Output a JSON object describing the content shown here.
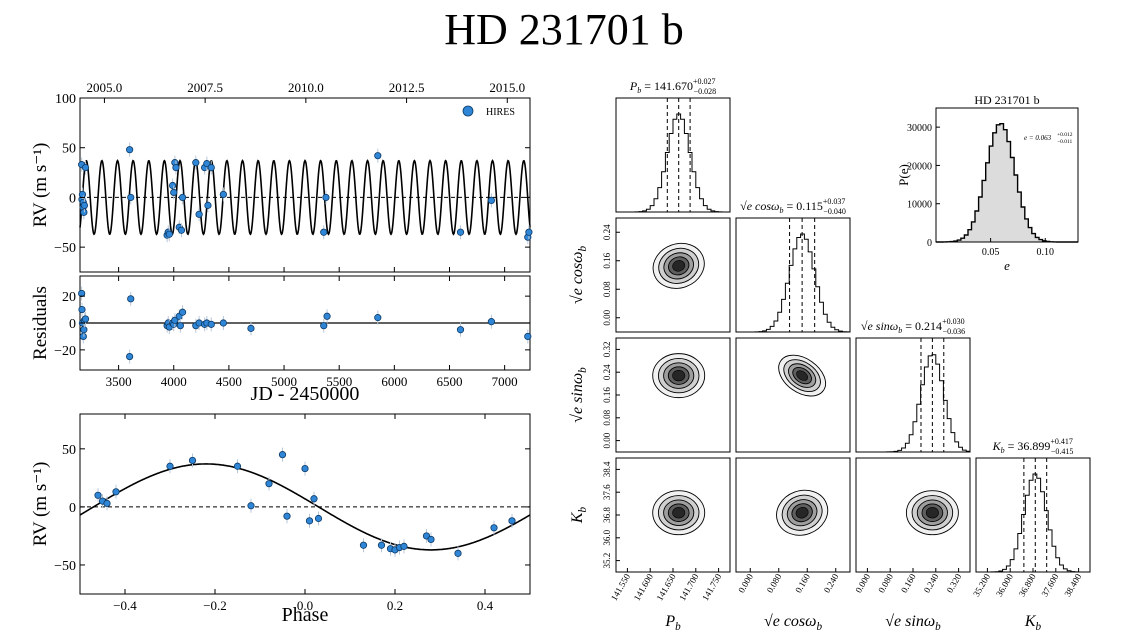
{
  "figure_title": "HD 231701 b",
  "chart_data": [
    {
      "id": "rv_time",
      "type": "scatter",
      "title": "",
      "xlabel": "",
      "ylabel": "RV (m s⁻¹)",
      "xlim": [
        3150,
        7230
      ],
      "ylim": [
        -75,
        100
      ],
      "yticks": [
        -50,
        0,
        50,
        100
      ],
      "top_axis_ticks": [
        "2005.0",
        "2007.5",
        "2010.0",
        "2012.5",
        "2015.0"
      ],
      "top_axis_values": [
        3371.5,
        4284.6,
        5197.7,
        6110.9,
        7024.0
      ],
      "legend": [
        "HIRES"
      ],
      "legend_position": "top-right",
      "model": {
        "period": 141.67,
        "amplitude": 37,
        "t0": 3207
      },
      "series": [
        {
          "name": "HIRES",
          "x": [
            3165,
            3168,
            3172,
            3178,
            3180,
            3185,
            3190,
            3200,
            3600,
            3610,
            3940,
            3950,
            3960,
            3990,
            4000,
            4010,
            4020,
            4050,
            4070,
            4080,
            4200,
            4230,
            4280,
            4300,
            4310,
            4340,
            4450,
            5360,
            5380,
            5850,
            6600,
            6880,
            7210,
            7220
          ],
          "y": [
            33,
            -2,
            3,
            -10,
            -5,
            -15,
            -8,
            30,
            48,
            0,
            -38,
            -35,
            -37,
            12,
            5,
            35,
            30,
            -30,
            -33,
            0,
            35,
            -17,
            30,
            34,
            -8,
            30,
            3,
            -35,
            0,
            42,
            -35,
            -3,
            -40,
            -35
          ]
        }
      ]
    },
    {
      "id": "residuals",
      "type": "scatter",
      "xlabel": "JD - 2450000",
      "ylabel": "Residuals",
      "xlim": [
        3150,
        7230
      ],
      "ylim": [
        -35,
        35
      ],
      "xticks": [
        3500,
        4000,
        4500,
        5000,
        5500,
        6000,
        6500,
        7000
      ],
      "yticks": [
        -20,
        0,
        20
      ],
      "series": [
        {
          "name": "HIRES",
          "x": [
            3165,
            3168,
            3172,
            3180,
            3185,
            3190,
            3200,
            3600,
            3610,
            3940,
            3950,
            3960,
            3990,
            4000,
            4010,
            4050,
            4060,
            4080,
            4200,
            4230,
            4280,
            4300,
            4340,
            4450,
            4700,
            5360,
            5390,
            5850,
            6600,
            6880,
            7210
          ],
          "y": [
            22,
            10,
            0,
            -10,
            -5,
            2,
            3,
            -25,
            18,
            -2,
            0,
            -3,
            0,
            -1,
            2,
            5,
            -2,
            8,
            -2,
            0,
            -1,
            0,
            -1,
            0,
            -4,
            -2,
            5,
            4,
            -5,
            1,
            -10
          ]
        }
      ]
    },
    {
      "id": "phase",
      "type": "scatter",
      "xlabel": "Phase",
      "ylabel": "RV (m s⁻¹)",
      "xlim": [
        -0.5,
        0.5
      ],
      "ylim": [
        -75,
        80
      ],
      "xticks": [
        -0.4,
        -0.2,
        0.0,
        0.2,
        0.4
      ],
      "yticks": [
        -50,
        0,
        50
      ],
      "model": {
        "amplitude": 37,
        "phase_peak": -0.22
      },
      "series": [
        {
          "name": "HIRES",
          "x": [
            -0.46,
            -0.45,
            -0.44,
            -0.42,
            -0.3,
            -0.25,
            -0.15,
            -0.12,
            -0.08,
            -0.05,
            -0.04,
            0.0,
            0.01,
            0.02,
            0.03,
            0.13,
            0.17,
            0.19,
            0.2,
            0.21,
            0.22,
            0.27,
            0.28,
            0.34,
            0.42,
            0.46
          ],
          "y": [
            10,
            5,
            3,
            13,
            35,
            40,
            35,
            1,
            20,
            45,
            -8,
            33,
            -12,
            7,
            -10,
            -33,
            -33,
            -36,
            -37,
            -35,
            -34,
            -25,
            -28,
            -40,
            -18,
            -12
          ]
        }
      ]
    },
    {
      "id": "corner",
      "type": "histogram",
      "params": [
        "P_b",
        "sqrt(e) cos omega_b",
        "sqrt(e) sin omega_b",
        "K_b"
      ],
      "panel_titles": [
        {
          "sym": "P",
          "sub": "b",
          "val": " = 141.670",
          "sup": "+0.027",
          "inf": "−0.028"
        },
        {
          "sym": "√e cosω",
          "sub": "b",
          "val": " = 0.115",
          "sup": "+0.037",
          "inf": "−0.040"
        },
        {
          "sym": "√e sinω",
          "sub": "b",
          "val": " = 0.214",
          "sup": "+0.030",
          "inf": "−0.036"
        },
        {
          "sym": "K",
          "sub": "b",
          "val": " = 36.899",
          "sup": "+0.417",
          "inf": "−0.415"
        }
      ],
      "x_axis_labels": [
        {
          "sym": "P",
          "sub": "b"
        },
        {
          "sym": "√e cosω",
          "sub": "b"
        },
        {
          "sym": "√e sinω",
          "sub": "b"
        },
        {
          "sym": "K",
          "sub": "b"
        }
      ],
      "y_axis_labels": [
        {
          "sym": "√e cosω",
          "sub": "b"
        },
        {
          "sym": "√e sinω",
          "sub": "b"
        },
        {
          "sym": "K",
          "sub": "b"
        }
      ],
      "ticks": [
        [
          "141.550",
          "141.600",
          "141.650",
          "141.700",
          "141.750"
        ],
        [
          "0.000",
          "0.080",
          "0.160",
          "0.240"
        ],
        [
          "0.000",
          "0.080",
          "0.160",
          "0.240",
          "0.320"
        ],
        [
          "35.200",
          "36.000",
          "36.800",
          "37.600",
          "38.400"
        ]
      ],
      "y_ticks": [
        [
          "0.00",
          "0.08",
          "0.16",
          "0.24"
        ],
        [
          "0.00",
          "0.08",
          "0.16",
          "0.24",
          "0.32"
        ],
        [
          "35.2",
          "36.0",
          "36.8",
          "37.6",
          "38.4"
        ]
      ],
      "medians_frac": [
        0.55,
        0.58,
        0.67,
        0.52
      ],
      "sigmas_frac": [
        0.1,
        0.11,
        0.1,
        0.1
      ]
    },
    {
      "id": "ecc_hist",
      "type": "histogram",
      "title": "HD 231701 b",
      "xlabel": "e",
      "ylabel": "P(e)",
      "xlim": [
        0.0,
        0.13
      ],
      "ylim": [
        0,
        35000
      ],
      "xticks": [
        0.05,
        0.1
      ],
      "yticks": [
        0,
        10000,
        20000,
        30000
      ],
      "mean": 0.063,
      "sigma": 0.012,
      "peak": 31000,
      "annotation": "e = 0.063",
      "annotation_sup": "+0.012",
      "annotation_inf": "−0.011"
    }
  ]
}
